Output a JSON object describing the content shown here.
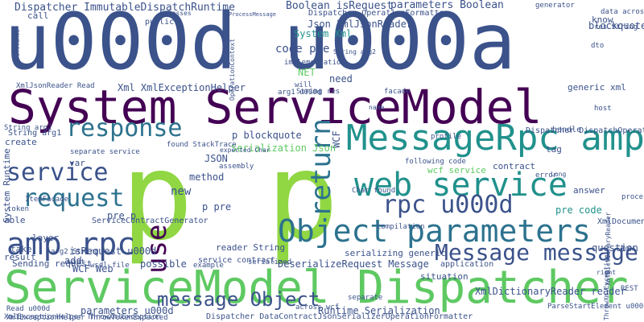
{
  "cloud": {
    "palette": [
      "#3b528b",
      "#440154",
      "#21918c",
      "#5ec962",
      "#fde725",
      "#2c728e",
      "#90d743"
    ],
    "words": [
      {
        "text": "u000d u000a",
        "color": "#3b528b"
      },
      {
        "text": "System ServiceModel",
        "color": "#440154"
      },
      {
        "text": "p p",
        "color": "#90d743"
      },
      {
        "text": "ServiceModel Dispatcher",
        "color": "#5ec962"
      },
      {
        "text": "MessageRpc amp",
        "color": "#21918c"
      },
      {
        "text": "web service",
        "color": "#21918c"
      },
      {
        "text": "Object parameters",
        "color": "#2c728e"
      },
      {
        "text": "rpc u000d",
        "color": "#3b528b"
      },
      {
        "text": "amp rpc",
        "color": "#3b528b"
      },
      {
        "text": "response",
        "color": "#2c728e"
      },
      {
        "text": "service",
        "color": "#3b528b"
      },
      {
        "text": "request",
        "color": "#2c728e"
      },
      {
        "text": "return",
        "color": "#2c728e"
      },
      {
        "text": "Message message",
        "color": "#3b528b"
      },
      {
        "text": "message Object",
        "color": "#3b528b"
      },
      {
        "text": "use",
        "color": "#440154"
      },
      {
        "text": "Dispatcher ImmutableDispatchRuntime",
        "color": "#3b528b"
      },
      {
        "text": "Boolean isRequest",
        "color": "#3b528b"
      },
      {
        "text": "parameters Boolean",
        "color": "#3b528b"
      },
      {
        "text": "Json XmlJsonReader",
        "color": "#3b528b"
      },
      {
        "text": "p blockquote",
        "color": "#3b528b"
      },
      {
        "text": "DeserializeRequest Message",
        "color": "#3b528b"
      },
      {
        "text": "XmlDictionaryReader reader",
        "color": "#3b528b"
      },
      {
        "text": "parameters u000d",
        "color": "#3b528b"
      },
      {
        "text": "Runtime Serialization",
        "color": "#3b528b"
      },
      {
        "text": "System Xml",
        "color": "#21918c"
      },
      {
        "text": "code pre",
        "color": "#3b528b"
      },
      {
        "text": "NET",
        "color": "#5ec962"
      },
      {
        "text": "need",
        "color": "#3b528b"
      },
      {
        "text": "Xml XmlExceptionHelper",
        "color": "#3b528b"
      },
      {
        "text": "WCF",
        "color": "#3b528b"
      },
      {
        "text": "Serialization Json",
        "color": "#5ec962"
      },
      {
        "text": "JSON",
        "color": "#3b528b"
      },
      {
        "text": "method",
        "color": "#3b528b"
      },
      {
        "text": "new",
        "color": "#3b528b"
      },
      {
        "text": "p pre",
        "color": "#3b528b"
      },
      {
        "text": "pre p",
        "color": "#3b528b"
      },
      {
        "text": "pre code",
        "color": "#21918c"
      },
      {
        "text": "isRequest u000d",
        "color": "#3b528b"
      },
      {
        "text": "possible",
        "color": "#3b528b"
      },
      {
        "text": "add",
        "color": "#3b528b"
      },
      {
        "text": "WCF Web",
        "color": "#3b528b"
      },
      {
        "text": "question",
        "color": "#3b528b"
      },
      {
        "text": "contract",
        "color": "#3b528b"
      },
      {
        "text": "tag",
        "color": "#3b528b"
      },
      {
        "text": "answer",
        "color": "#3b528b"
      },
      {
        "text": "blockquote p",
        "color": "#3b528b"
      },
      {
        "text": "know",
        "color": "#3b528b"
      },
      {
        "text": "generic xml",
        "color": "#3b528b"
      },
      {
        "text": "call",
        "color": "#3b528b"
      },
      {
        "text": "create",
        "color": "#3b528b"
      },
      {
        "text": "var",
        "color": "#3b528b"
      },
      {
        "text": "able",
        "color": "#3b528b"
      },
      {
        "text": "token",
        "color": "#3b528b"
      },
      {
        "text": "Sending request",
        "color": "#3b528b"
      },
      {
        "text": "layer",
        "color": "#3b528b"
      },
      {
        "text": "take",
        "color": "#3b528b"
      },
      {
        "text": "result",
        "color": "#3b528b"
      },
      {
        "text": "want",
        "color": "#3b528b"
      },
      {
        "text": "System Runtime",
        "color": "#3b528b"
      },
      {
        "text": "reader String",
        "color": "#3b528b"
      },
      {
        "text": "service contract",
        "color": "#3b528b"
      },
      {
        "text": "wcf service",
        "color": "#5ec962"
      },
      {
        "text": "example",
        "color": "#3b528b"
      },
      {
        "text": "situation",
        "color": "#3b528b"
      },
      {
        "text": "application",
        "color": "#3b528b"
      },
      {
        "text": "serialized",
        "color": "#3b528b"
      },
      {
        "text": "serializing generic",
        "color": "#3b528b"
      },
      {
        "text": "handle",
        "color": "#3b528b"
      },
      {
        "text": "Dispatcher DispatchOperationRuntime",
        "color": "#3b528b"
      },
      {
        "text": "XmlExceptionHelper ThrowXmlException",
        "color": "#3b528b"
      },
      {
        "text": "Dispatcher OperationFormatter",
        "color": "#3b528b"
      },
      {
        "text": "Dispatcher DataContractJsonSerializerOperationFormatter",
        "color": "#3b528b"
      },
      {
        "text": "XmlDocument",
        "color": "#3b528b"
      },
      {
        "text": "String arg1",
        "color": "#3b528b"
      },
      {
        "text": "arg1 u000d",
        "color": "#3b528b"
      },
      {
        "text": "String res",
        "color": "#3b528b"
      },
      {
        "text": "implementation",
        "color": "#3b528b"
      },
      {
        "text": "Read u000d",
        "color": "#3b528b"
      },
      {
        "text": "XmlJsonReader Read",
        "color": "#3b528b"
      },
      {
        "text": "ItemFacade",
        "color": "#3b528b"
      },
      {
        "text": "wsdl file",
        "color": "#3b528b"
      },
      {
        "text": "arg2 String",
        "color": "#3b528b"
      },
      {
        "text": "across wcf",
        "color": "#3b528b"
      },
      {
        "text": "separate",
        "color": "#3b528b"
      },
      {
        "text": "REST",
        "color": "#3b528b"
      },
      {
        "text": "Now",
        "color": "#3b528b"
      },
      {
        "text": "processor",
        "color": "#3b528b"
      },
      {
        "text": "error",
        "color": "#3b528b"
      },
      {
        "text": "host",
        "color": "#3b528b"
      },
      {
        "text": "dto",
        "color": "#3b528b"
      },
      {
        "text": "res String",
        "color": "#3b528b"
      },
      {
        "text": "data across",
        "color": "#3b528b"
      },
      {
        "text": "generator",
        "color": "#3b528b"
      },
      {
        "text": "classes",
        "color": "#3b528b"
      },
      {
        "text": "public",
        "color": "#3b528b"
      },
      {
        "text": "instance",
        "color": "#3b528b"
      },
      {
        "text": "XmlExceptionHelper ThrowTokenExpected",
        "color": "#3b528b"
      },
      {
        "text": "ServiceContractGenerator",
        "color": "#3b528b"
      },
      {
        "text": "separate service",
        "color": "#3b528b"
      },
      {
        "text": "ParseStartElement u000d",
        "color": "#3b528b"
      },
      {
        "text": "Char found",
        "color": "#3b528b"
      },
      {
        "text": "following code",
        "color": "#3b528b"
      },
      {
        "text": "compilation",
        "color": "#3b528b"
      },
      {
        "text": "name",
        "color": "#3b528b"
      },
      {
        "text": "profile",
        "color": "#3b528b"
      },
      {
        "text": "Long",
        "color": "#3b528b"
      },
      {
        "text": "right",
        "color": "#3b528b"
      },
      {
        "text": "String arg2",
        "color": "#3b528b"
      },
      {
        "text": "assembly",
        "color": "#3b528b"
      },
      {
        "text": "found StackTrace",
        "color": "#3b528b"
      },
      {
        "text": "expected Char",
        "color": "#3b528b"
      },
      {
        "text": "facade",
        "color": "#3b528b"
      },
      {
        "text": "will",
        "color": "#3b528b"
      },
      {
        "text": "XmlDictionaryReader",
        "color": "#3b528b"
      },
      {
        "text": "ThrowXmlException",
        "color": "#3b528b"
      },
      {
        "text": "OperationContext",
        "color": "#3b528b"
      },
      {
        "text": "String arg2",
        "color": "#3b528b"
      },
      {
        "text": "ProcessMessage",
        "color": "#3b528b"
      }
    ]
  }
}
